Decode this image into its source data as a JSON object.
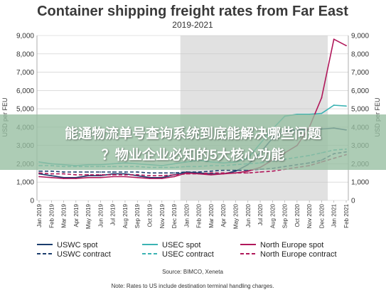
{
  "chart_data": {
    "type": "line",
    "title": "Container shipping freight rates from Far East",
    "subtitle": "2019-2021",
    "ylabel": "USD per FEU",
    "ylim": [
      0,
      9000
    ],
    "yticks": [
      "0",
      "1,000",
      "2,000",
      "3,000",
      "4,000",
      "5,000",
      "6,000",
      "7,000",
      "8,000",
      "9,000"
    ],
    "ytick_values": [
      0,
      1000,
      2000,
      3000,
      4000,
      5000,
      6000,
      7000,
      8000,
      9000
    ],
    "x_labels": [
      "Jan 2019",
      "Feb 2019",
      "Mar 2019",
      "Apr 2019",
      "May 2019",
      "Jun 2019",
      "Jul 2019",
      "Aug 2019",
      "Sep 2019",
      "Oct 2019",
      "Nov 2019",
      "Dec 2019",
      "Jan 2020",
      "Feb 2020",
      "Mar 2020",
      "Apr 2020",
      "May 2020",
      "Jun 2020",
      "Jul 2020",
      "Aug 2020",
      "Sep 2020",
      "Oct 2020",
      "Nov 2020",
      "Dec 2020",
      "Jan 2021",
      "Feb 2021"
    ],
    "shaded_region": [
      "Jan 2020",
      "Dec 2020"
    ],
    "grid": true,
    "series": [
      {
        "name": "USWC spot",
        "color": "#1b3d6d",
        "dash": "solid",
        "values": [
          1450,
          1350,
          1250,
          1250,
          1350,
          1350,
          1450,
          1450,
          1350,
          1250,
          1250,
          1400,
          1550,
          1500,
          1450,
          1450,
          1600,
          1950,
          2600,
          3400,
          3800,
          3850,
          3850,
          3900,
          3950,
          3850
        ]
      },
      {
        "name": "USWC contract",
        "color": "#1b3d6d",
        "dash": "dashed",
        "values": [
          1600,
          1600,
          1550,
          1550,
          1550,
          1550,
          1550,
          1550,
          1550,
          1500,
          1500,
          1500,
          1550,
          1550,
          1600,
          1650,
          1650,
          1650,
          1700,
          1750,
          1850,
          1950,
          2050,
          2200,
          2550,
          2650
        ]
      },
      {
        "name": "USEC spot",
        "color": "#3bb3b3",
        "dash": "solid",
        "values": [
          2100,
          2000,
          1950,
          1900,
          1950,
          1950,
          2000,
          2050,
          2000,
          1950,
          1900,
          2000,
          2100,
          2200,
          2100,
          2050,
          2100,
          2300,
          3100,
          3900,
          4600,
          4700,
          4700,
          4750,
          5200,
          5150
        ]
      },
      {
        "name": "USEC contract",
        "color": "#3bb3b3",
        "dash": "dashed",
        "values": [
          1900,
          1900,
          1850,
          1850,
          1850,
          1850,
          1850,
          1850,
          1850,
          1800,
          1800,
          1800,
          1850,
          1850,
          1900,
          1900,
          1950,
          2000,
          2050,
          2150,
          2250,
          2350,
          2450,
          2600,
          2750,
          2800
        ]
      },
      {
        "name": "North Europe spot",
        "color": "#b0185a",
        "dash": "solid",
        "values": [
          1300,
          1250,
          1200,
          1200,
          1250,
          1250,
          1300,
          1300,
          1250,
          1200,
          1200,
          1300,
          1500,
          1450,
          1400,
          1450,
          1500,
          1600,
          1800,
          2200,
          2600,
          3000,
          4000,
          5600,
          8800,
          8450
        ]
      },
      {
        "name": "North Europe contract",
        "color": "#b0185a",
        "dash": "dashed",
        "values": [
          1500,
          1450,
          1450,
          1400,
          1400,
          1400,
          1400,
          1400,
          1400,
          1350,
          1350,
          1400,
          1450,
          1450,
          1500,
          1500,
          1500,
          1500,
          1550,
          1600,
          1700,
          1800,
          1900,
          2100,
          2300,
          2500
        ]
      }
    ],
    "legend_placement": "bottom",
    "source": "Source: BIMCO, Xeneta",
    "note": "Note: Rates to US include destination terminal handling charges."
  },
  "overlay": {
    "line1": "能通物流单号查询系统到底能解决哪些问题",
    "line2": "？物业企业必知的5大核心功能"
  }
}
